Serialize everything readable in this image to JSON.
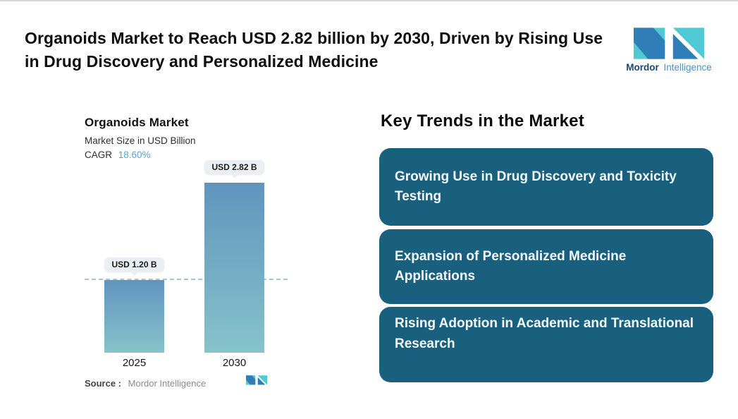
{
  "header": {
    "title": "Organoids Market to Reach USD 2.82 billion by 2030, Driven by Rising Use in Drug Discovery and Personalized Medicine",
    "logo": {
      "brand_bold": "Mordor",
      "brand_light": "Intelligence"
    }
  },
  "chart": {
    "title": "Organoids Market",
    "subtitle": "Market Size in USD Billion",
    "cagr_label": "CAGR",
    "cagr_value": "18.60%",
    "bars": [
      {
        "year": "2025",
        "label": "USD 1.20 B"
      },
      {
        "year": "2030",
        "label": "USD 2.82 B"
      }
    ],
    "source_label": "Source :",
    "source_value": "Mordor Intelligence"
  },
  "chart_data": {
    "type": "bar",
    "title": "Organoids Market",
    "subtitle": "Market Size in USD Billion",
    "categories": [
      "2025",
      "2030"
    ],
    "values": [
      1.2,
      2.82
    ],
    "value_labels": [
      "USD 1.20 B",
      "USD 2.82 B"
    ],
    "cagr": "18.60%",
    "xlabel": "",
    "ylabel": "Market Size in USD Billion",
    "ylim": [
      0,
      3
    ],
    "grid": false,
    "reference_line": {
      "y": 1.2,
      "style": "dashed"
    },
    "source": "Mordor Intelligence"
  },
  "trends": {
    "heading": "Key Trends in the Market",
    "items": [
      {
        "label": "Growing Use in Drug Discovery and Toxicity Testing"
      },
      {
        "label": "Expansion of Personalized Medicine Applications"
      },
      {
        "label": "Rising Adoption in Academic and Translational Research"
      }
    ]
  },
  "colors": {
    "trend_box": "#19607f",
    "bar_top": "#6094be",
    "bar_bottom": "#87c3ca",
    "cagr_value": "#57a3d9",
    "dash_line": "#a6c4df",
    "logo_blue": "#2f7eb8",
    "logo_teal": "#4fc9d3"
  }
}
